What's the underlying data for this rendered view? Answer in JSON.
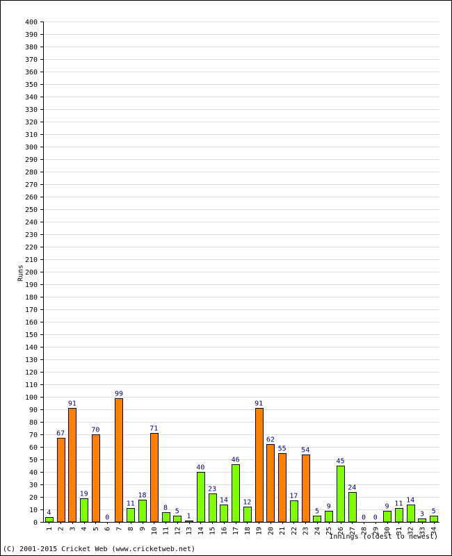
{
  "chart_data": {
    "type": "bar",
    "title": "",
    "xlabel": "Innings (oldest to newest)",
    "ylabel": "Runs",
    "ylim": [
      0,
      400
    ],
    "ytick_step": 10,
    "grid": true,
    "categories": [
      "1",
      "2",
      "3",
      "4",
      "5",
      "6",
      "7",
      "8",
      "9",
      "10",
      "11",
      "12",
      "13",
      "14",
      "15",
      "16",
      "17",
      "18",
      "19",
      "20",
      "21",
      "22",
      "23",
      "24",
      "25",
      "26",
      "27",
      "28",
      "29",
      "30",
      "31",
      "32",
      "33",
      "34"
    ],
    "values": [
      4,
      67,
      91,
      19,
      70,
      0,
      99,
      11,
      18,
      71,
      8,
      5,
      1,
      40,
      23,
      14,
      46,
      12,
      91,
      62,
      55,
      17,
      54,
      5,
      9,
      45,
      24,
      0,
      0,
      9,
      11,
      14,
      3,
      5
    ],
    "bar_colors": [
      "green",
      "orange",
      "orange",
      "green",
      "orange",
      "green",
      "orange",
      "green",
      "green",
      "orange",
      "green",
      "green",
      "green",
      "green",
      "green",
      "green",
      "green",
      "green",
      "orange",
      "orange",
      "orange",
      "green",
      "orange",
      "green",
      "green",
      "green",
      "green",
      "green",
      "green",
      "green",
      "green",
      "green",
      "green",
      "green"
    ],
    "palette": {
      "orange": "#ff8000",
      "green": "#80ff00",
      "bar_outline": "#000000",
      "data_label": "#000080",
      "grid": "#dddddd"
    }
  },
  "footer": {
    "copyright": "(C) 2001-2015 Cricket Web (www.cricketweb.net)"
  }
}
